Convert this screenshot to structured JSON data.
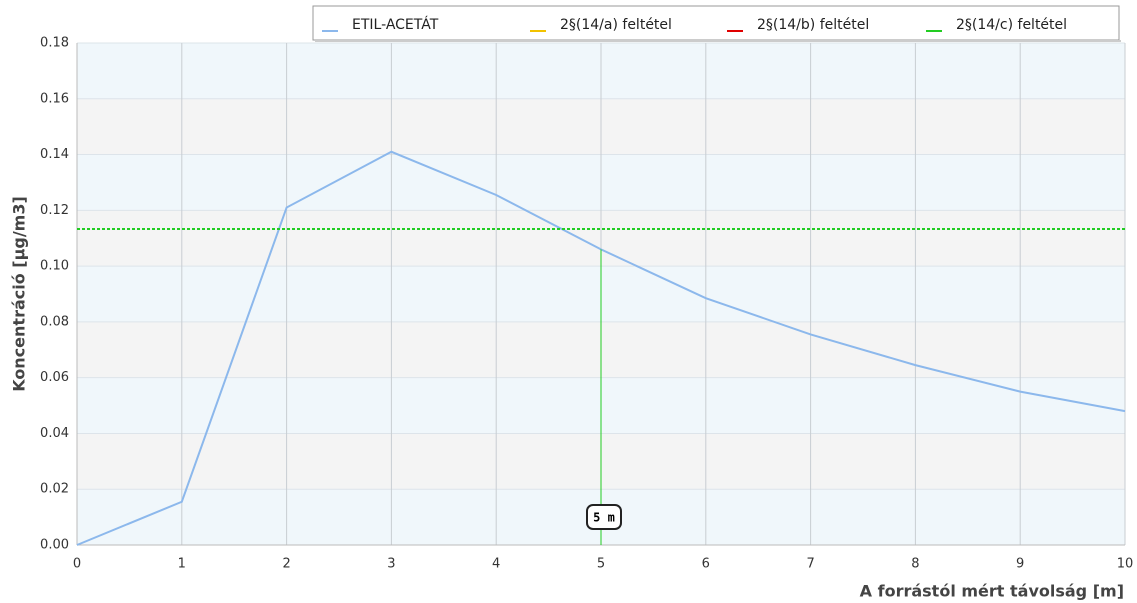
{
  "chart_data": {
    "type": "line",
    "x_label": "A forrástól mért távolság [m]",
    "y_label": "Koncentráció [µg/m3]",
    "x": [
      0,
      1,
      2,
      3,
      4,
      5,
      6,
      7,
      8,
      9,
      10
    ],
    "series": [
      {
        "name": "ETIL-ACETÁT",
        "color": "#8cb8ec",
        "values": [
          0,
          0.0155,
          0.121,
          0.141,
          0.1255,
          0.106,
          0.0885,
          0.0755,
          0.0645,
          0.055,
          0.048
        ]
      },
      {
        "name": "2§(14/a) feltétel",
        "color": "#f2c200"
      },
      {
        "name": "2§(14/b) feltétel",
        "color": "#e00000"
      },
      {
        "name": "2§(14/c) feltétel",
        "color": "#22cc22",
        "value": 0.1133
      }
    ],
    "annotation": {
      "x": 5,
      "label": "5 m"
    },
    "xlim": [
      0,
      10
    ],
    "xticks": [
      0,
      1,
      2,
      3,
      4,
      5,
      6,
      7,
      8,
      9,
      10
    ],
    "ylim": [
      0,
      0.18
    ],
    "yticks": [
      {
        "value": 0,
        "label": "0.00"
      },
      {
        "value": 0.02,
        "label": "0.02"
      },
      {
        "value": 0.04,
        "label": "0.04"
      },
      {
        "value": 0.06,
        "label": "0.06"
      },
      {
        "value": 0.08,
        "label": "0.08"
      },
      {
        "value": 0.1,
        "label": "0.10"
      },
      {
        "value": 0.12,
        "label": "0.12"
      },
      {
        "value": 0.14,
        "label": "0.14"
      },
      {
        "value": 0.16,
        "label": "0.16"
      },
      {
        "value": 0.18,
        "label": "0.18"
      }
    ],
    "grid": true,
    "legend": "top-right"
  }
}
